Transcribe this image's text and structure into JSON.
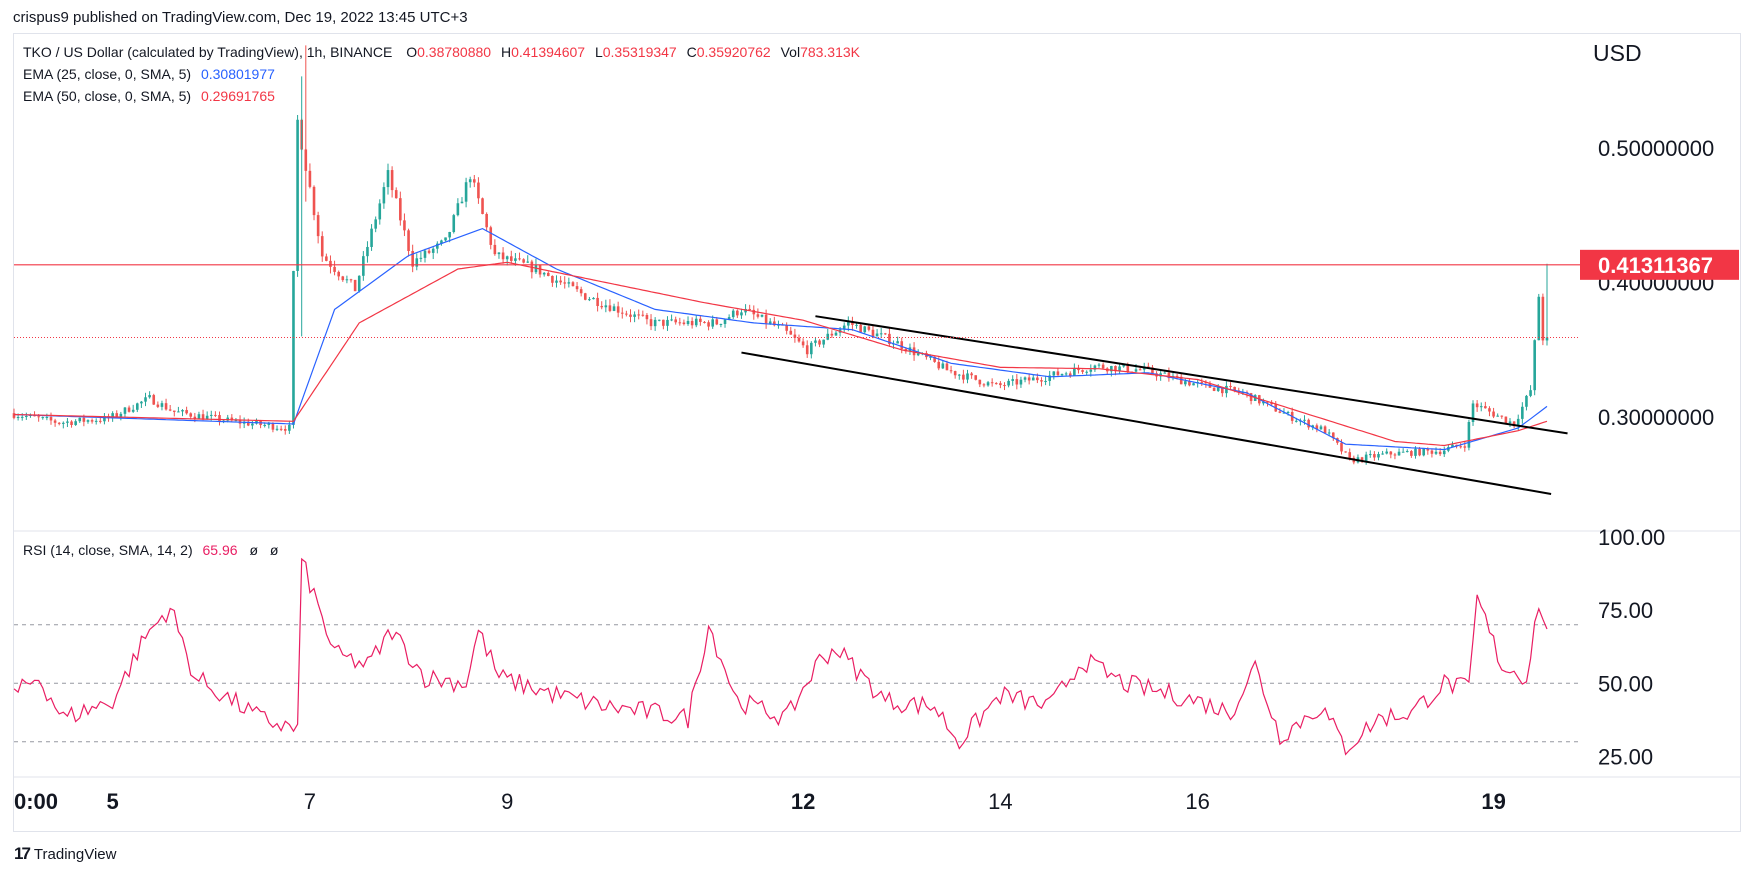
{
  "header": {
    "credit": "crispus9 published on TradingView.com, Dec 19, 2022 13:45 UTC+3"
  },
  "legend": {
    "symbol": "TKO / US Dollar (calculated by TradingView), 1h, BINANCE",
    "open_label": "O",
    "open": "0.38780880",
    "high_label": "H",
    "high": "0.41394607",
    "low_label": "L",
    "low": "0.35319347",
    "close_label": "C",
    "close": "0.35920762",
    "vol_label": "Vol",
    "vol": "783.313K",
    "ema25_name": "EMA (25, close, 0, SMA, 5)",
    "ema25_value": "0.30801977",
    "ema50_name": "EMA (50, close, 0, SMA, 5)",
    "ema50_value": "0.29691765",
    "rsi_name": "RSI (14, close, SMA, 14, 2)",
    "rsi_value": "65.96",
    "rsi_extra1": "ø",
    "rsi_extra2": "ø"
  },
  "axis": {
    "currency": "USD",
    "price_ticks": [
      "0.50000000",
      "0.40000000",
      "0.30000000"
    ],
    "rsi_ticks": [
      "100.00",
      "75.00",
      "50.00",
      "25.00"
    ],
    "time_ticks": [
      {
        "label": "0:00",
        "bold": true
      },
      {
        "label": "5",
        "bold": true
      },
      {
        "label": "7",
        "bold": false
      },
      {
        "label": "9",
        "bold": false
      },
      {
        "label": "12",
        "bold": true
      },
      {
        "label": "14",
        "bold": false
      },
      {
        "label": "16",
        "bold": false
      },
      {
        "label": "19",
        "bold": true
      }
    ],
    "price_marker": "0.41311367"
  },
  "footer": {
    "brand": "TradingView",
    "logo": "17"
  },
  "colors": {
    "up": "#26a69a",
    "down": "#ef5350",
    "ema25": "#2962ff",
    "ema50": "#f23645",
    "resistance": "#f23645",
    "rsi": "#e91e63",
    "channel": "#000000"
  },
  "chart_data": {
    "type": "candlestick",
    "title": "TKO / US Dollar (calculated by TradingView), 1h, BINANCE",
    "ylabel": "USD",
    "ylim": [
      0.22,
      0.58
    ],
    "y_ticks": [
      0.3,
      0.4,
      0.5
    ],
    "x_range": [
      "2022-12-04T00:00",
      "2022-12-19T13:00"
    ],
    "time_ticks": [
      "2022-12-04T00:00",
      "2022-12-05",
      "2022-12-07",
      "2022-12-09",
      "2022-12-12",
      "2022-12-14",
      "2022-12-16",
      "2022-12-19"
    ],
    "horizontal_line": 0.41311367,
    "last_close_line": 0.35920762,
    "price_anchors": [
      {
        "t": "2022-12-04T00:00",
        "p": 0.303
      },
      {
        "t": "2022-12-04T12:00",
        "p": 0.296
      },
      {
        "t": "2022-12-05T00:00",
        "p": 0.299
      },
      {
        "t": "2022-12-05T10:00",
        "p": 0.314
      },
      {
        "t": "2022-12-05T16:00",
        "p": 0.304
      },
      {
        "t": "2022-12-06T06:00",
        "p": 0.297
      },
      {
        "t": "2022-12-06T20:00",
        "p": 0.292
      },
      {
        "t": "2022-12-06T22:00",
        "p": 0.52
      },
      {
        "t": "2022-12-07T04:00",
        "p": 0.42
      },
      {
        "t": "2022-12-07T12:00",
        "p": 0.395
      },
      {
        "t": "2022-12-07T20:00",
        "p": 0.48
      },
      {
        "t": "2022-12-08T02:00",
        "p": 0.415
      },
      {
        "t": "2022-12-08T10:00",
        "p": 0.43
      },
      {
        "t": "2022-12-08T16:00",
        "p": 0.48
      },
      {
        "t": "2022-12-08T22:00",
        "p": 0.42
      },
      {
        "t": "2022-12-09T08:00",
        "p": 0.41
      },
      {
        "t": "2022-12-09T20:00",
        "p": 0.39
      },
      {
        "t": "2022-12-10T12:00",
        "p": 0.37
      },
      {
        "t": "2022-12-11T04:00",
        "p": 0.37
      },
      {
        "t": "2022-12-11T10:00",
        "p": 0.38
      },
      {
        "t": "2022-12-11T20:00",
        "p": 0.365
      },
      {
        "t": "2022-12-12T02:00",
        "p": 0.35
      },
      {
        "t": "2022-12-12T12:00",
        "p": 0.37
      },
      {
        "t": "2022-12-13T00:00",
        "p": 0.355
      },
      {
        "t": "2022-12-13T12:00",
        "p": 0.335
      },
      {
        "t": "2022-12-14T00:00",
        "p": 0.323
      },
      {
        "t": "2022-12-14T12:00",
        "p": 0.33
      },
      {
        "t": "2022-12-15T00:00",
        "p": 0.338
      },
      {
        "t": "2022-12-15T12:00",
        "p": 0.335
      },
      {
        "t": "2022-12-16T00:00",
        "p": 0.325
      },
      {
        "t": "2022-12-16T12:00",
        "p": 0.318
      },
      {
        "t": "2022-12-17T00:00",
        "p": 0.3
      },
      {
        "t": "2022-12-17T08:00",
        "p": 0.29
      },
      {
        "t": "2022-12-17T14:00",
        "p": 0.268
      },
      {
        "t": "2022-12-18T00:00",
        "p": 0.273
      },
      {
        "t": "2022-12-18T12:00",
        "p": 0.275
      },
      {
        "t": "2022-12-18T18:00",
        "p": 0.28
      },
      {
        "t": "2022-12-18T20:00",
        "p": 0.31
      },
      {
        "t": "2022-12-19T06:00",
        "p": 0.295
      },
      {
        "t": "2022-12-19T10:00",
        "p": 0.32
      },
      {
        "t": "2022-12-19T12:00",
        "p": 0.39
      },
      {
        "t": "2022-12-19T13:00",
        "p": 0.359
      }
    ],
    "ema25_anchors": [
      {
        "t": "2022-12-04T00:00",
        "p": 0.302
      },
      {
        "t": "2022-12-06T20:00",
        "p": 0.295
      },
      {
        "t": "2022-12-07T06:00",
        "p": 0.38
      },
      {
        "t": "2022-12-08T00:00",
        "p": 0.42
      },
      {
        "t": "2022-12-08T18:00",
        "p": 0.44
      },
      {
        "t": "2022-12-09T12:00",
        "p": 0.41
      },
      {
        "t": "2022-12-10T12:00",
        "p": 0.38
      },
      {
        "t": "2022-12-11T12:00",
        "p": 0.37
      },
      {
        "t": "2022-12-12T12:00",
        "p": 0.365
      },
      {
        "t": "2022-12-13T12:00",
        "p": 0.34
      },
      {
        "t": "2022-12-14T12:00",
        "p": 0.33
      },
      {
        "t": "2022-12-15T12:00",
        "p": 0.333
      },
      {
        "t": "2022-12-16T12:00",
        "p": 0.318
      },
      {
        "t": "2022-12-17T12:00",
        "p": 0.28
      },
      {
        "t": "2022-12-18T12:00",
        "p": 0.276
      },
      {
        "t": "2022-12-19T06:00",
        "p": 0.292
      },
      {
        "t": "2022-12-19T13:00",
        "p": 0.308
      }
    ],
    "ema50_anchors": [
      {
        "t": "2022-12-04T00:00",
        "p": 0.302
      },
      {
        "t": "2022-12-06T20:00",
        "p": 0.297
      },
      {
        "t": "2022-12-07T12:00",
        "p": 0.37
      },
      {
        "t": "2022-12-08T12:00",
        "p": 0.41
      },
      {
        "t": "2022-12-09T00:00",
        "p": 0.415
      },
      {
        "t": "2022-12-10T00:00",
        "p": 0.4
      },
      {
        "t": "2022-12-11T00:00",
        "p": 0.385
      },
      {
        "t": "2022-12-12T00:00",
        "p": 0.372
      },
      {
        "t": "2022-12-13T00:00",
        "p": 0.35
      },
      {
        "t": "2022-12-14T00:00",
        "p": 0.337
      },
      {
        "t": "2022-12-15T00:00",
        "p": 0.336
      },
      {
        "t": "2022-12-16T00:00",
        "p": 0.328
      },
      {
        "t": "2022-12-17T00:00",
        "p": 0.305
      },
      {
        "t": "2022-12-18T00:00",
        "p": 0.282
      },
      {
        "t": "2022-12-18T12:00",
        "p": 0.279
      },
      {
        "t": "2022-12-19T06:00",
        "p": 0.29
      },
      {
        "t": "2022-12-19T13:00",
        "p": 0.297
      }
    ],
    "channel_upper": [
      {
        "t": "2022-12-12T03:00",
        "p": 0.375
      },
      {
        "t": "2022-12-19T18:00",
        "p": 0.288
      }
    ],
    "channel_lower": [
      {
        "t": "2022-12-11T09:00",
        "p": 0.348
      },
      {
        "t": "2022-12-19T14:00",
        "p": 0.243
      }
    ],
    "rsi": {
      "ylim": [
        20,
        100
      ],
      "levels": [
        70,
        50,
        30
      ],
      "y_ticks": [
        100,
        75,
        50,
        25
      ],
      "anchors": [
        {
          "t": "2022-12-04T00:00",
          "v": 46
        },
        {
          "t": "2022-12-04T06:00",
          "v": 52
        },
        {
          "t": "2022-12-04T12:00",
          "v": 38
        },
        {
          "t": "2022-12-05T00:00",
          "v": 44
        },
        {
          "t": "2022-12-05T08:00",
          "v": 66
        },
        {
          "t": "2022-12-05T14:00",
          "v": 76
        },
        {
          "t": "2022-12-05T20:00",
          "v": 52
        },
        {
          "t": "2022-12-06T12:00",
          "v": 38
        },
        {
          "t": "2022-12-06T21:00",
          "v": 34
        },
        {
          "t": "2022-12-06T22:00",
          "v": 92
        },
        {
          "t": "2022-12-07T06:00",
          "v": 60
        },
        {
          "t": "2022-12-07T14:00",
          "v": 56
        },
        {
          "t": "2022-12-07T20:00",
          "v": 68
        },
        {
          "t": "2022-12-08T04:00",
          "v": 52
        },
        {
          "t": "2022-12-08T14:00",
          "v": 50
        },
        {
          "t": "2022-12-08T17:00",
          "v": 68
        },
        {
          "t": "2022-12-08T22:00",
          "v": 52
        },
        {
          "t": "2022-12-09T12:00",
          "v": 46
        },
        {
          "t": "2022-12-10T00:00",
          "v": 42
        },
        {
          "t": "2022-12-10T12:00",
          "v": 40
        },
        {
          "t": "2022-12-10T20:00",
          "v": 38
        },
        {
          "t": "2022-12-11T01:00",
          "v": 70
        },
        {
          "t": "2022-12-11T08:00",
          "v": 44
        },
        {
          "t": "2022-12-11T20:00",
          "v": 38
        },
        {
          "t": "2022-12-12T04:00",
          "v": 58
        },
        {
          "t": "2022-12-12T08:00",
          "v": 62
        },
        {
          "t": "2022-12-12T20:00",
          "v": 44
        },
        {
          "t": "2022-12-13T08:00",
          "v": 42
        },
        {
          "t": "2022-12-13T14:00",
          "v": 30
        },
        {
          "t": "2022-12-14T00:00",
          "v": 46
        },
        {
          "t": "2022-12-14T12:00",
          "v": 42
        },
        {
          "t": "2022-12-14T20:00",
          "v": 58
        },
        {
          "t": "2022-12-15T06:00",
          "v": 50
        },
        {
          "t": "2022-12-15T12:00",
          "v": 48
        },
        {
          "t": "2022-12-16T00:00",
          "v": 44
        },
        {
          "t": "2022-12-16T08:00",
          "v": 40
        },
        {
          "t": "2022-12-16T14:00",
          "v": 56
        },
        {
          "t": "2022-12-16T20:00",
          "v": 32
        },
        {
          "t": "2022-12-17T06:00",
          "v": 42
        },
        {
          "t": "2022-12-17T12:00",
          "v": 28
        },
        {
          "t": "2022-12-17T20:00",
          "v": 38
        },
        {
          "t": "2022-12-18T04:00",
          "v": 40
        },
        {
          "t": "2022-12-18T12:00",
          "v": 50
        },
        {
          "t": "2022-12-18T18:00",
          "v": 48
        },
        {
          "t": "2022-12-18T20:00",
          "v": 79
        },
        {
          "t": "2022-12-19T02:00",
          "v": 56
        },
        {
          "t": "2022-12-19T08:00",
          "v": 52
        },
        {
          "t": "2022-12-19T11:00",
          "v": 78
        },
        {
          "t": "2022-12-19T13:00",
          "v": 66
        }
      ]
    }
  }
}
